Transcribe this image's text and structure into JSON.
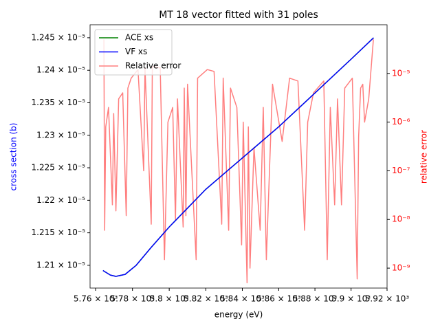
{
  "chart_data": {
    "type": "line",
    "title": "MT 18 vector fitted with 31 poles",
    "xlabel": "energy (eV)",
    "ylabel": "cross section (b)",
    "y2label": "relative error",
    "ylabel_color": "#0000ff",
    "y2label_color": "#ff0000",
    "xscale": "log",
    "y2scale": "log",
    "legend": "upper left",
    "xlim": [
      5757,
      5920
    ],
    "ylim": [
      1.2065e-05,
      1.247e-05
    ],
    "y2lim": [
      3.9e-10,
      0.0001
    ],
    "xticks": [
      {
        "value": 5760,
        "label": "5.76 × 10³"
      },
      {
        "value": 5780,
        "label": "5.78 × 10³"
      },
      {
        "value": 5800,
        "label": "5.8 × 10³"
      },
      {
        "value": 5820,
        "label": "5.82 × 10³"
      },
      {
        "value": 5840,
        "label": "5.84 × 10³"
      },
      {
        "value": 5860,
        "label": "5.86 × 10³"
      },
      {
        "value": 5880,
        "label": "5.88 × 10³"
      },
      {
        "value": 5900,
        "label": "5.9 × 10³"
      },
      {
        "value": 5920,
        "label": "5.92 × 10³"
      }
    ],
    "yticks": [
      {
        "value": 1.21e-05,
        "label": "1.21 × 10⁻⁵"
      },
      {
        "value": 1.215e-05,
        "label": "1.215 × 10⁻⁵"
      },
      {
        "value": 1.22e-05,
        "label": "1.22 × 10⁻⁵"
      },
      {
        "value": 1.225e-05,
        "label": "1.225 × 10⁻⁵"
      },
      {
        "value": 1.23e-05,
        "label": "1.23 × 10⁻⁵"
      },
      {
        "value": 1.235e-05,
        "label": "1.235 × 10⁻⁵"
      },
      {
        "value": 1.24e-05,
        "label": "1.24 × 10⁻⁵"
      },
      {
        "value": 1.245e-05,
        "label": "1.245 × 10⁻⁵"
      }
    ],
    "y2ticks": [
      {
        "value": 1e-09,
        "label": "10⁻⁹"
      },
      {
        "value": 1e-08,
        "label": "10⁻⁸"
      },
      {
        "value": 1e-07,
        "label": "10⁻⁷"
      },
      {
        "value": 1e-06,
        "label": "10⁻⁶"
      },
      {
        "value": 1e-05,
        "label": "10⁻⁵"
      }
    ],
    "series": [
      {
        "name": "ACE xs",
        "color": "#008000",
        "x": [
          5764,
          5768,
          5771,
          5776,
          5782,
          5790,
          5800,
          5810,
          5820,
          5840,
          5860,
          5880,
          5900,
          5912.5
        ],
        "values": [
          1.2092e-05,
          1.2085e-05,
          1.2083e-05,
          1.2086e-05,
          1.21e-05,
          1.2127e-05,
          1.2159e-05,
          1.2188e-05,
          1.2217e-05,
          1.2265e-05,
          1.2313e-05,
          1.2365e-05,
          1.2417e-05,
          1.245e-05
        ]
      },
      {
        "name": "VF xs",
        "color": "#0000ff",
        "x": [
          5764,
          5768,
          5771,
          5776,
          5782,
          5790,
          5800,
          5810,
          5820,
          5840,
          5860,
          5880,
          5900,
          5912.5
        ],
        "values": [
          1.2092e-05,
          1.2085e-05,
          1.2083e-05,
          1.2086e-05,
          1.21e-05,
          1.2127e-05,
          1.2159e-05,
          1.2188e-05,
          1.2217e-05,
          1.2265e-05,
          1.2313e-05,
          1.2365e-05,
          1.2417e-05,
          1.245e-05
        ]
      },
      {
        "name": "Relative error",
        "color": "#ff7f7f",
        "axis": "y2",
        "x": [
          5764.5,
          5764.9,
          5765.5,
          5767,
          5769.1,
          5769.8,
          5771,
          5772.5,
          5774.7,
          5776.6,
          5777.5,
          5779.3,
          5783,
          5786.1,
          5786.8,
          5790.2,
          5790.8,
          5795.1,
          5797.4,
          5799.3,
          5801.9,
          5803.4,
          5804.5,
          5807.6,
          5808.2,
          5809.1,
          5810,
          5814.7,
          5815.5,
          5820.8,
          5824.5,
          5828.7,
          5829.5,
          5832.5,
          5833.5,
          5837,
          5839.6,
          5840.5,
          5842.6,
          5843.3,
          5844.2,
          5846.4,
          5849.8,
          5851.5,
          5853.2,
          5856.6,
          5861.9,
          5866,
          5870.6,
          5874.3,
          5876,
          5879.2,
          5884.9,
          5886.8,
          5888.5,
          5890.9,
          5892.5,
          5894.7,
          5896.5,
          5900.7,
          5903.4,
          5904.2,
          5905.3,
          5906.5,
          5907.5,
          5909.8,
          5912.4
        ],
        "values": [
          5e-05,
          6e-09,
          8e-07,
          2e-06,
          2e-08,
          1.5e-06,
          1.5e-08,
          3e-06,
          4e-06,
          1.2e-08,
          5e-06,
          8e-06,
          1.2e-05,
          1e-07,
          1.3e-05,
          8e-09,
          1.4e-05,
          1.3e-05,
          1.5e-09,
          1e-06,
          2e-06,
          1e-08,
          3e-06,
          7e-09,
          5e-06,
          1.2e-08,
          6e-06,
          1.5e-09,
          8e-06,
          1.2e-05,
          1.1e-05,
          8e-09,
          8e-06,
          6e-09,
          5e-06,
          2e-06,
          3e-09,
          1e-06,
          5e-10,
          8e-07,
          1e-09,
          3e-07,
          6e-09,
          2e-06,
          1.5e-09,
          6e-06,
          4e-07,
          8e-06,
          7e-06,
          6e-09,
          1e-06,
          4e-06,
          7e-06,
          1.5e-09,
          2e-06,
          2e-08,
          3e-06,
          2e-08,
          5e-06,
          8e-06,
          6e-10,
          5e-07,
          5e-06,
          6e-06,
          1e-06,
          3e-06,
          5e-05
        ]
      }
    ]
  }
}
